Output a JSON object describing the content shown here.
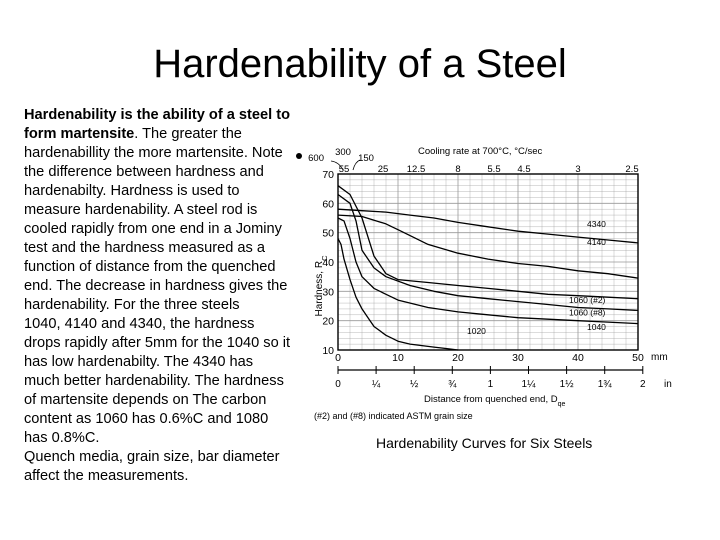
{
  "slide": {
    "title": "Hardenability of a Steel",
    "intro_bold": "Hardenability is the ability of a steel to form martensite",
    "body_rest": ". The greater the hardenabillity the more martensite. Note the difference between hardness and hardenabilty. Hardness is used to measure hardenability. A steel rod is cooled rapidly from one end in a Jominy test and the hardness measured as a function of distance from the quenched end. The decrease in hardness gives the hardenability. For the three steels\n1040, 4140 and 4340, the hardness drops rapidly after 5mm for the 1040 so it has low hardenabilty. The 4340 has much better hardenability. The hardness of martensite depends on The carbon content as 1060 has 0.6%C and 1080 has 0.8%C.\nQuench media, grain size, bar diameter affect the measurements."
  },
  "chart_data": {
    "type": "line",
    "title": "Hardenability Curves for Six Steels",
    "ylabel": "Hardness, RC",
    "ylabel_main": "Hardness, R",
    "ylabel_sub": "C",
    "xlabel_mm_unit": "mm",
    "xlabel_in_unit": "in",
    "xlabel_in": "Distance from quenched end, D",
    "xlabel_in_sub": "qe",
    "top_axis_label": "Cooling rate at 700°C, °C/sec",
    "footnote": "(#2) and (#8) indicated ASTM grain size",
    "ylim": [
      10,
      70
    ],
    "xlim": [
      0,
      50
    ],
    "y_ticks": [
      "10",
      "20",
      "30",
      "40",
      "50",
      "60",
      "70"
    ],
    "y_tick_values": [
      10,
      20,
      30,
      40,
      50,
      60,
      70
    ],
    "x_mm_ticks": [
      "0",
      "10",
      "20",
      "30",
      "40",
      "50"
    ],
    "x_mm_tick_values": [
      0,
      10,
      20,
      30,
      40,
      50
    ],
    "x_in_ticks": [
      {
        "label": "0",
        "in": 0
      },
      {
        "label": "¼",
        "in": 0.25
      },
      {
        "label": "½",
        "in": 0.5
      },
      {
        "label": "¾",
        "in": 0.75
      },
      {
        "label": "1",
        "in": 1
      },
      {
        "label": "1¼",
        "in": 1.25
      },
      {
        "label": "1½",
        "in": 1.5
      },
      {
        "label": "1¾",
        "in": 1.75
      },
      {
        "label": "2",
        "in": 2
      }
    ],
    "cooling_rate_ticks": [
      {
        "label": "600",
        "x": 0
      },
      {
        "label": "300",
        "x": 1.2
      },
      {
        "label": "150",
        "x": 3.2
      },
      {
        "label": "55",
        "x": 0
      },
      {
        "label": "25",
        "x": 7.5
      },
      {
        "label": "12.5",
        "x": 13
      },
      {
        "label": "8",
        "x": 20
      },
      {
        "label": "5.5",
        "x": 26
      },
      {
        "label": "4.5",
        "x": 31
      },
      {
        "label": "3",
        "x": 40
      },
      {
        "label": "2.5",
        "x": 49
      }
    ],
    "series": [
      {
        "name": "4340",
        "x": [
          0,
          4,
          8,
          12,
          16,
          20,
          25,
          30,
          35,
          40,
          45,
          50
        ],
        "y": [
          58,
          57.5,
          57,
          56,
          55,
          53.5,
          52,
          50.5,
          49.5,
          48.5,
          47.5,
          46.5
        ]
      },
      {
        "name": "4140",
        "x": [
          0,
          4,
          8,
          10,
          12,
          15,
          20,
          25,
          30,
          35,
          40,
          45,
          50
        ],
        "y": [
          56,
          55.5,
          53,
          51,
          49,
          46,
          43,
          41,
          39.5,
          38.5,
          37,
          36,
          34.5
        ]
      },
      {
        "name": "1060 (#2)",
        "x": [
          0,
          2,
          4,
          6,
          8,
          10,
          15,
          20,
          25,
          30,
          35,
          40,
          45,
          50
        ],
        "y": [
          66,
          63,
          55,
          42,
          36,
          34,
          33,
          32,
          31,
          30,
          29,
          28.5,
          28,
          27.5
        ]
      },
      {
        "name": "1060 (#8)",
        "x": [
          0,
          2,
          3,
          4,
          6,
          8,
          12,
          16,
          20,
          25,
          30,
          35,
          40,
          45,
          50
        ],
        "y": [
          63,
          60,
          54,
          44,
          38,
          35,
          32,
          30,
          28.5,
          27.5,
          26.5,
          25.5,
          24.5,
          24,
          23.5
        ]
      },
      {
        "name": "1040",
        "x": [
          0,
          1,
          2,
          3,
          4,
          6,
          8,
          10,
          15,
          20,
          25,
          30,
          35,
          40,
          45,
          50
        ],
        "y": [
          55,
          54,
          48,
          40,
          35,
          31,
          29,
          27,
          24.5,
          23,
          22,
          21,
          20.5,
          20,
          19.5,
          19
        ]
      },
      {
        "name": "1020",
        "x": [
          0,
          0.5,
          1,
          2,
          3,
          4,
          5,
          6,
          8,
          10,
          12,
          14,
          16,
          18,
          20
        ],
        "y": [
          48,
          46,
          41,
          34,
          28,
          24,
          21,
          18,
          15,
          13,
          12,
          11.5,
          11,
          10.5,
          10
        ]
      }
    ],
    "series_labels": [
      {
        "text": "4340",
        "x": 41.5,
        "y": 52
      },
      {
        "text": "4140",
        "x": 41.5,
        "y": 45.8
      },
      {
        "text": "1060 (#2)",
        "x": 38.5,
        "y": 26
      },
      {
        "text": "1060 (#8)",
        "x": 38.5,
        "y": 21.8
      },
      {
        "text": "1040",
        "x": 41.5,
        "y": 16.8
      },
      {
        "text": "1020",
        "x": 21.5,
        "y": 15.5
      }
    ],
    "grid": true
  }
}
